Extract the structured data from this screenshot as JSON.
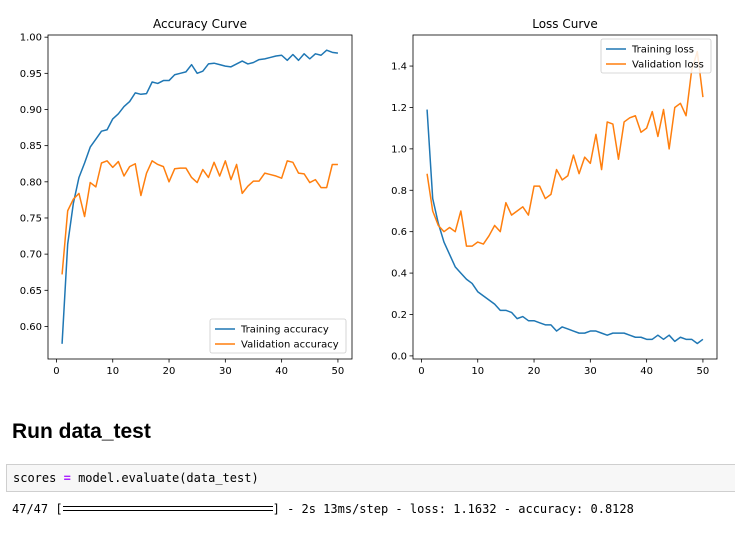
{
  "chart_data": [
    {
      "type": "line",
      "title": "Accuracy Curve",
      "xlabel": "",
      "ylabel": "",
      "xlim": [
        -1.5,
        52.5
      ],
      "ylim": [
        0.555,
        1.003
      ],
      "x_ticks": [
        0,
        10,
        20,
        30,
        40,
        50
      ],
      "y_ticks": [
        0.6,
        0.65,
        0.7,
        0.75,
        0.8,
        0.85,
        0.9,
        0.95,
        1.0
      ],
      "x_tick_labels": [
        "0",
        "10",
        "20",
        "30",
        "40",
        "50"
      ],
      "y_tick_labels": [
        "0.60",
        "0.65",
        "0.70",
        "0.75",
        "0.80",
        "0.85",
        "0.90",
        "0.95",
        "1.00"
      ],
      "grid": false,
      "legend_position": "lower-right",
      "x": [
        1,
        2,
        3,
        4,
        5,
        6,
        7,
        8,
        9,
        10,
        11,
        12,
        13,
        14,
        15,
        16,
        17,
        18,
        19,
        20,
        21,
        22,
        23,
        24,
        25,
        26,
        27,
        28,
        29,
        30,
        31,
        32,
        33,
        34,
        35,
        36,
        37,
        38,
        39,
        40,
        41,
        42,
        43,
        44,
        45,
        46,
        47,
        48,
        49,
        50
      ],
      "series": [
        {
          "name": "Training accuracy",
          "color": "#1f77b4",
          "values": [
            0.576,
            0.714,
            0.77,
            0.806,
            0.826,
            0.848,
            0.859,
            0.87,
            0.872,
            0.887,
            0.894,
            0.904,
            0.911,
            0.923,
            0.921,
            0.922,
            0.938,
            0.936,
            0.94,
            0.94,
            0.948,
            0.95,
            0.952,
            0.962,
            0.95,
            0.953,
            0.963,
            0.964,
            0.962,
            0.96,
            0.959,
            0.963,
            0.967,
            0.963,
            0.965,
            0.969,
            0.97,
            0.972,
            0.974,
            0.975,
            0.968,
            0.976,
            0.968,
            0.977,
            0.97,
            0.977,
            0.975,
            0.982,
            0.979,
            0.978
          ]
        },
        {
          "name": "Validation accuracy",
          "color": "#ff7f0e",
          "values": [
            0.672,
            0.76,
            0.776,
            0.784,
            0.752,
            0.799,
            0.793,
            0.826,
            0.829,
            0.82,
            0.828,
            0.808,
            0.821,
            0.825,
            0.781,
            0.812,
            0.829,
            0.824,
            0.821,
            0.8,
            0.818,
            0.819,
            0.819,
            0.806,
            0.799,
            0.817,
            0.806,
            0.827,
            0.808,
            0.829,
            0.803,
            0.824,
            0.784,
            0.794,
            0.801,
            0.801,
            0.812,
            0.81,
            0.808,
            0.805,
            0.829,
            0.827,
            0.812,
            0.811,
            0.799,
            0.803,
            0.792,
            0.792,
            0.824,
            0.824
          ]
        }
      ]
    },
    {
      "type": "line",
      "title": "Loss Curve",
      "xlabel": "",
      "ylabel": "",
      "xlim": [
        -1.5,
        52.5
      ],
      "ylim": [
        -0.015,
        1.55
      ],
      "x_ticks": [
        0,
        10,
        20,
        30,
        40,
        50
      ],
      "y_ticks": [
        0.0,
        0.2,
        0.4,
        0.6,
        0.8,
        1.0,
        1.2,
        1.4
      ],
      "x_tick_labels": [
        "0",
        "10",
        "20",
        "30",
        "40",
        "50"
      ],
      "y_tick_labels": [
        "0.0",
        "0.2",
        "0.4",
        "0.6",
        "0.8",
        "1.0",
        "1.2",
        "1.4"
      ],
      "grid": false,
      "legend_position": "upper-right",
      "x": [
        1,
        2,
        3,
        4,
        5,
        6,
        7,
        8,
        9,
        10,
        11,
        12,
        13,
        14,
        15,
        16,
        17,
        18,
        19,
        20,
        21,
        22,
        23,
        24,
        25,
        26,
        27,
        28,
        29,
        30,
        31,
        32,
        33,
        34,
        35,
        36,
        37,
        38,
        39,
        40,
        41,
        42,
        43,
        44,
        45,
        46,
        47,
        48,
        49,
        50
      ],
      "series": [
        {
          "name": "Training loss",
          "color": "#1f77b4",
          "values": [
            1.19,
            0.76,
            0.64,
            0.55,
            0.49,
            0.43,
            0.4,
            0.37,
            0.35,
            0.31,
            0.29,
            0.27,
            0.25,
            0.22,
            0.22,
            0.21,
            0.18,
            0.19,
            0.17,
            0.17,
            0.16,
            0.15,
            0.15,
            0.12,
            0.14,
            0.13,
            0.12,
            0.11,
            0.11,
            0.12,
            0.12,
            0.11,
            0.1,
            0.11,
            0.11,
            0.11,
            0.1,
            0.09,
            0.09,
            0.08,
            0.08,
            0.1,
            0.08,
            0.1,
            0.07,
            0.09,
            0.08,
            0.08,
            0.06,
            0.08
          ]
        },
        {
          "name": "Validation loss",
          "color": "#ff7f0e",
          "values": [
            0.88,
            0.7,
            0.63,
            0.6,
            0.62,
            0.6,
            0.7,
            0.53,
            0.53,
            0.55,
            0.54,
            0.58,
            0.63,
            0.6,
            0.74,
            0.68,
            0.7,
            0.72,
            0.68,
            0.82,
            0.82,
            0.76,
            0.78,
            0.9,
            0.85,
            0.87,
            0.97,
            0.88,
            0.96,
            0.93,
            1.07,
            0.9,
            1.13,
            1.12,
            0.95,
            1.13,
            1.15,
            1.16,
            1.08,
            1.1,
            1.18,
            1.06,
            1.19,
            1.0,
            1.2,
            1.22,
            1.16,
            1.38,
            1.47,
            1.25
          ]
        }
      ]
    }
  ],
  "page": {
    "heading": "Run data_test",
    "code": {
      "var": "scores",
      "op": "=",
      "call": "model.evaluate(data_test)"
    },
    "output": {
      "steps": "47/47",
      "bar_open": "[",
      "bar_close": "]",
      "progress": 1.0,
      "summary": "- 2s 13ms/step - loss: 1.1632 - accuracy: 0.8128"
    }
  }
}
